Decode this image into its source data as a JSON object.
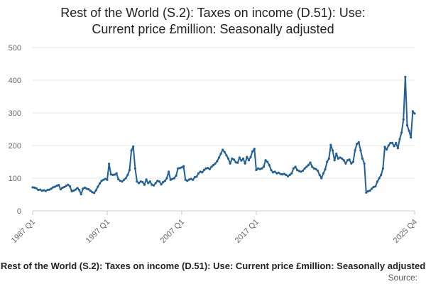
{
  "chart_data": {
    "type": "line",
    "title_lines": [
      "Rest of the World (S.2): Taxes on income (D.51): Use:",
      "Current price £million: Seasonally adjusted"
    ],
    "footer_title": "Rest of the World (S.2): Taxes on income (D.51): Use: Current price £million: Seasonally adjusted",
    "source_label": "Source:",
    "ylim": [
      0,
      500
    ],
    "y_ticks": [
      0,
      100,
      200,
      300,
      400,
      500
    ],
    "x_tick_labels": [
      "1987 Q1",
      "1997 Q1",
      "2007 Q1",
      "2017 Q1",
      "2025 Q4"
    ],
    "grid": true,
    "line_color": "#206095",
    "series": [
      {
        "values": [
          72,
          71,
          69,
          64,
          65,
          62,
          63,
          61,
          64,
          65,
          68,
          72,
          74,
          77,
          79,
          66,
          71,
          73,
          77,
          80,
          75,
          60,
          62,
          65,
          70,
          64,
          51,
          68,
          71,
          68,
          66,
          62,
          57,
          55,
          63,
          74,
          84,
          92,
          95,
          98,
          95,
          144,
          112,
          110,
          111,
          115,
          97,
          92,
          90,
          95,
          100,
          110,
          125,
          185,
          197,
          130,
          90,
          85,
          90,
          88,
          80,
          96,
          85,
          90,
          80,
          78,
          85,
          92,
          90,
          81,
          88,
          92,
          100,
          120,
          95,
          98,
          100,
          108,
          130,
          131,
          133,
          137,
          95,
          92,
          96,
          98,
          95,
          103,
          105,
          115,
          120,
          118,
          125,
          130,
          131,
          128,
          135,
          140,
          145,
          152,
          163,
          175,
          187,
          180,
          170,
          160,
          145,
          160,
          157,
          149,
          147,
          163,
          154,
          160,
          145,
          165,
          155,
          165,
          182,
          190,
          125,
          130,
          128,
          130,
          135,
          155,
          150,
          140,
          125,
          118,
          120,
          115,
          117,
          113,
          112,
          113,
          110,
          106,
          110,
          115,
          130,
          135,
          125,
          122,
          120,
          123,
          130,
          135,
          140,
          148,
          135,
          130,
          128,
          123,
          110,
          100,
          115,
          127,
          150,
          160,
          202,
          185,
          155,
          175,
          160,
          163,
          160,
          155,
          145,
          155,
          157,
          145,
          150,
          185,
          205,
          210,
          185,
          160,
          145,
          56,
          60,
          62,
          68,
          73,
          75,
          90,
          100,
          110,
          130,
          196,
          188,
          200,
          208,
          208,
          198,
          208,
          192,
          220,
          240,
          280,
          410,
          262,
          245,
          225,
          305,
          298
        ]
      }
    ]
  }
}
